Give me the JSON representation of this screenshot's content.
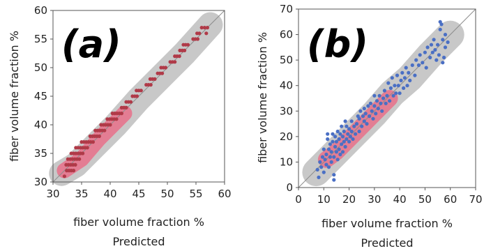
{
  "chart_data": [
    {
      "type": "scatter",
      "panel_label": "(a)",
      "xlabel_line1": "fiber volume fraction %",
      "xlabel_line2": "Predicted",
      "ylabel": "fiber volume fraction %",
      "xlim": [
        30,
        60
      ],
      "ylim": [
        30,
        60
      ],
      "xticks": [
        30,
        35,
        40,
        45,
        50,
        55,
        60
      ],
      "yticks": [
        30,
        35,
        40,
        45,
        50,
        55,
        60
      ],
      "grid": false,
      "reference_line": "y = x",
      "density_ellipse": {
        "outer": [
          [
            31.5,
            31.5
          ],
          [
            34,
            33
          ],
          [
            37,
            36
          ],
          [
            41,
            40
          ],
          [
            45,
            44.5
          ],
          [
            49,
            48.5
          ],
          [
            53,
            52.5
          ],
          [
            57.5,
            57.5
          ]
        ],
        "inner": [
          [
            32,
            32
          ],
          [
            35,
            34
          ],
          [
            38,
            37.5
          ],
          [
            42.5,
            42
          ]
        ]
      },
      "point_color": "#b03a48",
      "series": [
        {
          "points": [
            [
              32.0,
              31.0
            ],
            [
              32.4,
              32.0
            ],
            [
              32.8,
              32.0
            ],
            [
              33.2,
              32.0
            ],
            [
              33.6,
              32.0
            ],
            [
              32.3,
              33.0
            ],
            [
              32.7,
              33.0
            ],
            [
              33.1,
              33.0
            ],
            [
              33.5,
              33.0
            ],
            [
              33.9,
              33.0
            ],
            [
              32.6,
              34.0
            ],
            [
              33.0,
              34.0
            ],
            [
              33.4,
              34.0
            ],
            [
              33.8,
              34.0
            ],
            [
              34.2,
              34.0
            ],
            [
              34.6,
              34.0
            ],
            [
              33.2,
              35.0
            ],
            [
              33.6,
              35.0
            ],
            [
              34.0,
              35.0
            ],
            [
              34.4,
              35.0
            ],
            [
              34.8,
              35.0
            ],
            [
              35.2,
              35.0
            ],
            [
              34.0,
              36.0
            ],
            [
              34.4,
              36.0
            ],
            [
              34.8,
              36.0
            ],
            [
              35.2,
              36.0
            ],
            [
              35.6,
              36.0
            ],
            [
              36.0,
              36.0
            ],
            [
              35.0,
              37.0
            ],
            [
              35.4,
              37.0
            ],
            [
              35.8,
              37.0
            ],
            [
              36.2,
              37.0
            ],
            [
              36.6,
              37.0
            ],
            [
              37.0,
              37.0
            ],
            [
              36.5,
              38.0
            ],
            [
              36.9,
              38.0
            ],
            [
              37.3,
              38.0
            ],
            [
              37.7,
              38.0
            ],
            [
              38.1,
              38.0
            ],
            [
              37.4,
              39.0
            ],
            [
              37.8,
              39.0
            ],
            [
              38.2,
              39.0
            ],
            [
              38.6,
              39.0
            ],
            [
              39.0,
              39.0
            ],
            [
              38.4,
              40.0
            ],
            [
              38.8,
              40.0
            ],
            [
              39.2,
              40.0
            ],
            [
              39.6,
              40.0
            ],
            [
              40.0,
              40.0
            ],
            [
              39.5,
              41.0
            ],
            [
              39.9,
              41.0
            ],
            [
              40.3,
              41.0
            ],
            [
              40.7,
              41.0
            ],
            [
              41.1,
              41.0
            ],
            [
              40.4,
              42.0
            ],
            [
              40.8,
              42.0
            ],
            [
              41.2,
              42.0
            ],
            [
              41.6,
              42.0
            ],
            [
              42.0,
              42.0
            ],
            [
              42.0,
              43.0
            ],
            [
              42.4,
              43.0
            ],
            [
              42.8,
              43.0
            ],
            [
              42.8,
              44.0
            ],
            [
              43.2,
              44.0
            ],
            [
              43.6,
              44.0
            ],
            [
              43.9,
              45.0
            ],
            [
              44.3,
              45.0
            ],
            [
              44.7,
              45.0
            ],
            [
              44.6,
              46.0
            ],
            [
              45.0,
              46.0
            ],
            [
              45.4,
              46.0
            ],
            [
              46.3,
              47.0
            ],
            [
              46.7,
              47.0
            ],
            [
              47.1,
              47.0
            ],
            [
              47.0,
              48.0
            ],
            [
              47.4,
              48.0
            ],
            [
              47.8,
              48.0
            ],
            [
              48.3,
              49.0
            ],
            [
              48.7,
              49.0
            ],
            [
              49.1,
              49.0
            ],
            [
              48.9,
              50.0
            ],
            [
              49.3,
              50.0
            ],
            [
              49.7,
              50.0
            ],
            [
              50.5,
              51.0
            ],
            [
              50.9,
              51.0
            ],
            [
              51.3,
              51.0
            ],
            [
              51.3,
              52.0
            ],
            [
              51.7,
              52.0
            ],
            [
              52.1,
              52.0
            ],
            [
              52.2,
              53.0
            ],
            [
              52.6,
              53.0
            ],
            [
              53.0,
              53.0
            ],
            [
              52.8,
              54.0
            ],
            [
              53.2,
              54.0
            ],
            [
              53.6,
              54.0
            ],
            [
              54.5,
              55.0
            ],
            [
              54.9,
              55.0
            ],
            [
              55.3,
              55.0
            ],
            [
              55.2,
              56.0
            ],
            [
              55.6,
              56.0
            ],
            [
              56.8,
              56.0
            ],
            [
              56.0,
              57.0
            ],
            [
              56.5,
              57.0
            ],
            [
              57.0,
              57.0
            ]
          ]
        }
      ]
    },
    {
      "type": "scatter",
      "panel_label": "(b)",
      "xlabel_line1": "fiber volume fraction %",
      "xlabel_line2": "Predicted",
      "ylabel": "fiber volume fraction %",
      "xlim": [
        0,
        70
      ],
      "ylim": [
        0,
        70
      ],
      "xticks": [
        0,
        10,
        20,
        30,
        40,
        50,
        60,
        70
      ],
      "yticks": [
        0,
        10,
        20,
        30,
        40,
        50,
        60,
        70
      ],
      "grid": false,
      "reference_line": "y = x",
      "density_ellipse": {
        "outer": [
          [
            7,
            6
          ],
          [
            10,
            9
          ],
          [
            15,
            14
          ],
          [
            22,
            21
          ],
          [
            30,
            29
          ],
          [
            37,
            37
          ],
          [
            44,
            43
          ],
          [
            52,
            52
          ],
          [
            60,
            60
          ]
        ],
        "inner": [
          [
            11,
            11
          ],
          [
            15,
            14
          ],
          [
            20,
            19
          ],
          [
            26,
            25
          ],
          [
            32,
            31
          ],
          [
            36,
            35
          ]
        ]
      },
      "point_color": "#4a6fc4",
      "series": [
        {
          "points": [
            [
              7.5,
              7.0
            ],
            [
              8.0,
              4.0
            ],
            [
              8.5,
              10.0
            ],
            [
              9.0,
              8.0
            ],
            [
              9.5,
              12.0
            ],
            [
              10.0,
              6.0
            ],
            [
              10.0,
              15.0
            ],
            [
              10.5,
              11.0
            ],
            [
              11.0,
              9.0
            ],
            [
              11.0,
              13.0
            ],
            [
              11.5,
              19.0
            ],
            [
              11.5,
              21.0
            ],
            [
              12.0,
              8.0
            ],
            [
              12.0,
              15.0
            ],
            [
              12.5,
              12.0
            ],
            [
              12.5,
              17.0
            ],
            [
              13.0,
              10.0
            ],
            [
              13.0,
              14.0
            ],
            [
              13.5,
              18.0
            ],
            [
              13.5,
              21.0
            ],
            [
              14.0,
              3.0
            ],
            [
              14.0,
              5.0
            ],
            [
              14.0,
              12.0
            ],
            [
              14.5,
              16.0
            ],
            [
              14.5,
              20.0
            ],
            [
              15.0,
              14.0
            ],
            [
              15.0,
              18.0
            ],
            [
              15.5,
              11.0
            ],
            [
              15.5,
              22.0
            ],
            [
              16.0,
              15.0
            ],
            [
              16.0,
              19.0
            ],
            [
              16.5,
              13.0
            ],
            [
              16.5,
              21.0
            ],
            [
              17.0,
              17.0
            ],
            [
              17.0,
              24.0
            ],
            [
              17.5,
              14.0
            ],
            [
              17.5,
              20.0
            ],
            [
              18.0,
              18.0
            ],
            [
              18.0,
              22.0
            ],
            [
              18.5,
              16.0
            ],
            [
              18.5,
              26.0
            ],
            [
              19.0,
              19.0
            ],
            [
              19.0,
              24.0
            ],
            [
              19.5,
              21.0
            ],
            [
              20.0,
              18.0
            ],
            [
              20.0,
              23.0
            ],
            [
              20.5,
              20.0
            ],
            [
              21.0,
              22.0
            ],
            [
              21.0,
              26.0
            ],
            [
              21.5,
              19.0
            ],
            [
              22.0,
              24.0
            ],
            [
              22.5,
              21.0
            ],
            [
              23.0,
              25.0
            ],
            [
              23.5,
              28.0
            ],
            [
              24.0,
              22.0
            ],
            [
              24.0,
              27.0
            ],
            [
              24.5,
              30.0
            ],
            [
              25.0,
              24.0
            ],
            [
              25.5,
              28.0
            ],
            [
              26.0,
              26.0
            ],
            [
              26.0,
              31.0
            ],
            [
              26.5,
              29.0
            ],
            [
              27.0,
              25.0
            ],
            [
              27.5,
              32.0
            ],
            [
              28.0,
              28.0
            ],
            [
              28.5,
              33.0
            ],
            [
              29.0,
              30.0
            ],
            [
              29.5,
              27.0
            ],
            [
              30.0,
              32.0
            ],
            [
              30.0,
              36.0
            ],
            [
              30.5,
              29.0
            ],
            [
              31.0,
              34.0
            ],
            [
              31.5,
              31.0
            ],
            [
              32.0,
              36.0
            ],
            [
              32.5,
              33.0
            ],
            [
              33.0,
              30.0
            ],
            [
              33.5,
              35.0
            ],
            [
              34.0,
              38.0
            ],
            [
              34.5,
              33.0
            ],
            [
              35.0,
              36.0
            ],
            [
              35.5,
              41.0
            ],
            [
              36.0,
              34.0
            ],
            [
              36.5,
              39.0
            ],
            [
              37.0,
              43.0
            ],
            [
              37.5,
              36.0
            ],
            [
              38.0,
              40.0
            ],
            [
              38.5,
              37.0
            ],
            [
              39.0,
              44.0
            ],
            [
              39.5,
              40.0
            ],
            [
              40.0,
              37.0
            ],
            [
              40.5,
              42.0
            ],
            [
              41.0,
              45.0
            ],
            [
              41.5,
              39.0
            ],
            [
              42.0,
              43.0
            ],
            [
              42.5,
              47.0
            ],
            [
              43.0,
              40.0
            ],
            [
              43.5,
              45.0
            ],
            [
              44.0,
              42.0
            ],
            [
              45.0,
              48.0
            ],
            [
              46.0,
              44.0
            ],
            [
              46.5,
              50.0
            ],
            [
              47.5,
              48.0
            ],
            [
              48.0,
              52.0
            ],
            [
              49.0,
              49.0
            ],
            [
              50.0,
              53.0
            ],
            [
              50.5,
              47.0
            ],
            [
              51.0,
              55.0
            ],
            [
              52.0,
              51.0
            ],
            [
              52.5,
              56.0
            ],
            [
              53.0,
              53.0
            ],
            [
              53.5,
              58.0
            ],
            [
              54.0,
              54.0
            ],
            [
              54.5,
              50.0
            ],
            [
              55.0,
              56.0
            ],
            [
              55.5,
              52.0
            ],
            [
              56.0,
              62.0
            ],
            [
              56.0,
              65.0
            ],
            [
              56.5,
              64.0
            ],
            [
              57.0,
              58.0
            ],
            [
              57.0,
              49.0
            ],
            [
              57.5,
              51.0
            ],
            [
              58.0,
              55.0
            ],
            [
              58.0,
              60.0
            ],
            [
              59.0,
              57.0
            ]
          ]
        }
      ]
    }
  ]
}
